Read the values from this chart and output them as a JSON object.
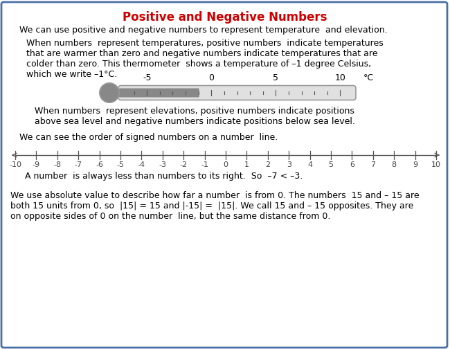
{
  "title": "Positive and Negative Numbers",
  "title_color": "#cc0000",
  "border_color": "#4a6fa5",
  "background_color": "#ffffff",
  "line1": "We can use positive and negative numbers to represent temperature  and elevation.",
  "para1_line1": "When numbers  represent temperatures, positive numbers  indicate temperatures",
  "para1_line2": "that are warmer than zero and negative numbers indicate temperatures that are",
  "para1_line3": "colder than zero. This thermometer  shows a temperature of –1 degree Celsius,",
  "para1_line4": "which we write –1°C.",
  "para2_line1": "When numbers  represent elevations, positive numbers indicate positions",
  "para2_line2": "above sea level and negative numbers indicate positions below sea level.",
  "line3": "We can see the order of signed numbers on a number  line.",
  "note1": "  A number  is always less than numbers to its right.  So  –7 < –3.",
  "para3_line1": "We use absolute value to describe how far a number  is from 0. The numbers  15 and – 15 are",
  "para3_line2": "both 15 units from 0, so  |15| = 15 and |-15| =  |15|. We call 15 and – 15 opposites. They are",
  "para3_line3": "on opposite sides of 0 on the number  line, but the same distance from 0.",
  "thermometer_min": -7,
  "thermometer_max": 11,
  "thermometer_fill_to": -1,
  "thermo_ticks": [
    -5,
    0,
    5,
    10
  ],
  "thermo_tick_labels": [
    "-5",
    "0",
    "5",
    "10"
  ],
  "numberline_min": -10,
  "numberline_max": 10
}
